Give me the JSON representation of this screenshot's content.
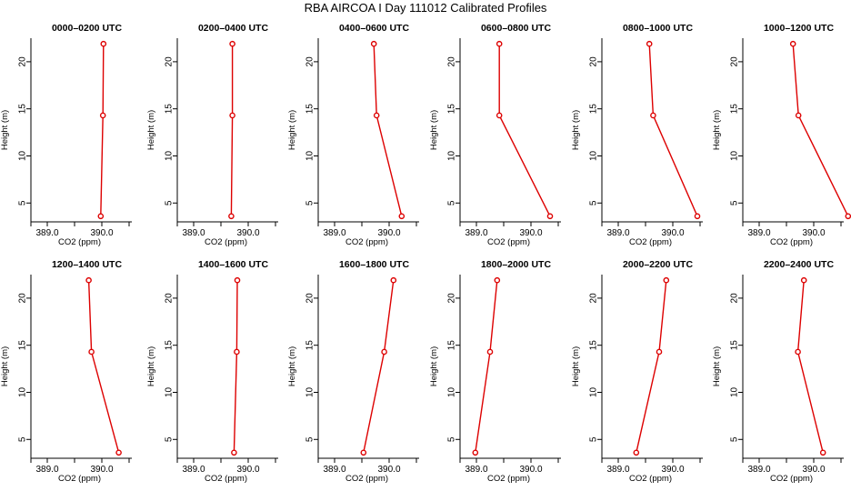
{
  "title": "RBA AIRCOA I  Day 111012  Calibrated Profiles",
  "chart_data": [
    {
      "type": "line",
      "title": "0000–0200 UTC",
      "xlabel": "CO2 (ppm)",
      "ylabel": "Height (m)",
      "x": [
        389.98,
        390.02,
        390.03
      ],
      "y": [
        3.6,
        14.3,
        21.9
      ]
    },
    {
      "type": "line",
      "title": "0200–0400 UTC",
      "xlabel": "CO2 (ppm)",
      "ylabel": "Height (m)",
      "x": [
        389.69,
        389.71,
        389.71
      ],
      "y": [
        3.6,
        14.3,
        21.9
      ]
    },
    {
      "type": "line",
      "title": "0400–0600 UTC",
      "xlabel": "CO2 (ppm)",
      "ylabel": "Height (m)",
      "x": [
        390.23,
        389.77,
        389.72
      ],
      "y": [
        3.6,
        14.3,
        21.9
      ]
    },
    {
      "type": "line",
      "title": "0600–0800 UTC",
      "xlabel": "CO2 (ppm)",
      "ylabel": "Height (m)",
      "x": [
        390.35,
        389.42,
        389.42
      ],
      "y": [
        3.6,
        14.3,
        21.9
      ]
    },
    {
      "type": "line",
      "title": "0800–1000 UTC",
      "xlabel": "CO2 (ppm)",
      "ylabel": "Height (m)",
      "x": [
        390.45,
        389.64,
        389.57
      ],
      "y": [
        3.6,
        14.3,
        21.9
      ]
    },
    {
      "type": "line",
      "title": "1000–1200 UTC",
      "xlabel": "CO2 (ppm)",
      "ylabel": "Height (m)",
      "x": [
        390.63,
        389.72,
        389.62
      ],
      "y": [
        3.6,
        14.3,
        21.9
      ]
    },
    {
      "type": "line",
      "title": "1200–1400 UTC",
      "xlabel": "CO2 (ppm)",
      "ylabel": "Height (m)",
      "x": [
        390.31,
        389.81,
        389.76
      ],
      "y": [
        3.6,
        14.3,
        21.9
      ]
    },
    {
      "type": "line",
      "title": "1400–1600 UTC",
      "xlabel": "CO2 (ppm)",
      "ylabel": "Height (m)",
      "x": [
        389.74,
        389.79,
        389.8
      ],
      "y": [
        3.6,
        14.3,
        21.9
      ]
    },
    {
      "type": "line",
      "title": "1600–1800 UTC",
      "xlabel": "CO2 (ppm)",
      "ylabel": "Height (m)",
      "x": [
        389.53,
        389.91,
        390.08
      ],
      "y": [
        3.6,
        14.3,
        21.9
      ]
    },
    {
      "type": "line",
      "title": "1800–2000 UTC",
      "xlabel": "CO2 (ppm)",
      "ylabel": "Height (m)",
      "x": [
        388.98,
        389.25,
        389.38
      ],
      "y": [
        3.6,
        14.3,
        21.9
      ]
    },
    {
      "type": "line",
      "title": "2000–2200 UTC",
      "xlabel": "CO2 (ppm)",
      "ylabel": "Height (m)",
      "x": [
        389.33,
        389.75,
        389.88
      ],
      "y": [
        3.6,
        14.3,
        21.9
      ]
    },
    {
      "type": "line",
      "title": "2200–2400 UTC",
      "xlabel": "CO2 (ppm)",
      "ylabel": "Height (m)",
      "x": [
        390.17,
        389.71,
        389.82
      ],
      "y": [
        3.6,
        14.3,
        21.9
      ]
    }
  ],
  "axes": {
    "x_ticks": [
      {
        "value": 389.0,
        "label": "389.0"
      },
      {
        "value": 390.0,
        "label": "390.0"
      }
    ],
    "x_minor_ticks_per_panel": {
      "0": [
        389.5,
        390.5
      ],
      "1": [
        389.5,
        390.5
      ],
      "2": [
        389.5,
        390.5
      ],
      "3": [
        388.8,
        389.6,
        390.2
      ],
      "4": [
        389.5,
        390.5
      ],
      "5": [
        389.5,
        390.5
      ],
      "6": [
        389.5,
        390.5
      ],
      "7": [
        389.5,
        390.5
      ],
      "8": [
        389.5,
        390.5
      ],
      "9": [
        389.5,
        390.5
      ],
      "10": [
        389.5,
        390.5
      ],
      "11": [
        389.5,
        390.5
      ]
    },
    "y_ticks": [
      {
        "value": 5,
        "label": "5"
      },
      {
        "value": 10,
        "label": "10"
      },
      {
        "value": 15,
        "label": "15"
      },
      {
        "value": 20,
        "label": "20"
      }
    ],
    "y_range": [
      3.0,
      22.5
    ]
  },
  "panel_x_ranges": [
    [
      389.5,
      390.5
    ],
    [
      389.0,
      390.5
    ],
    [
      389.0,
      390.5
    ],
    [
      389.0,
      390.5
    ],
    [
      389.0,
      390.5
    ],
    [
      389.0,
      390.5
    ],
    [
      389.0,
      390.5
    ],
    [
      389.0,
      390.5
    ],
    [
      389.0,
      390.5
    ],
    [
      389.0,
      390.5
    ],
    [
      389.0,
      390.5
    ],
    [
      389.0,
      390.5
    ]
  ],
  "style": {
    "line_color": "#dd0000",
    "marker_color": "#dd0000",
    "axis_color": "#000000",
    "background": "#ffffff"
  }
}
